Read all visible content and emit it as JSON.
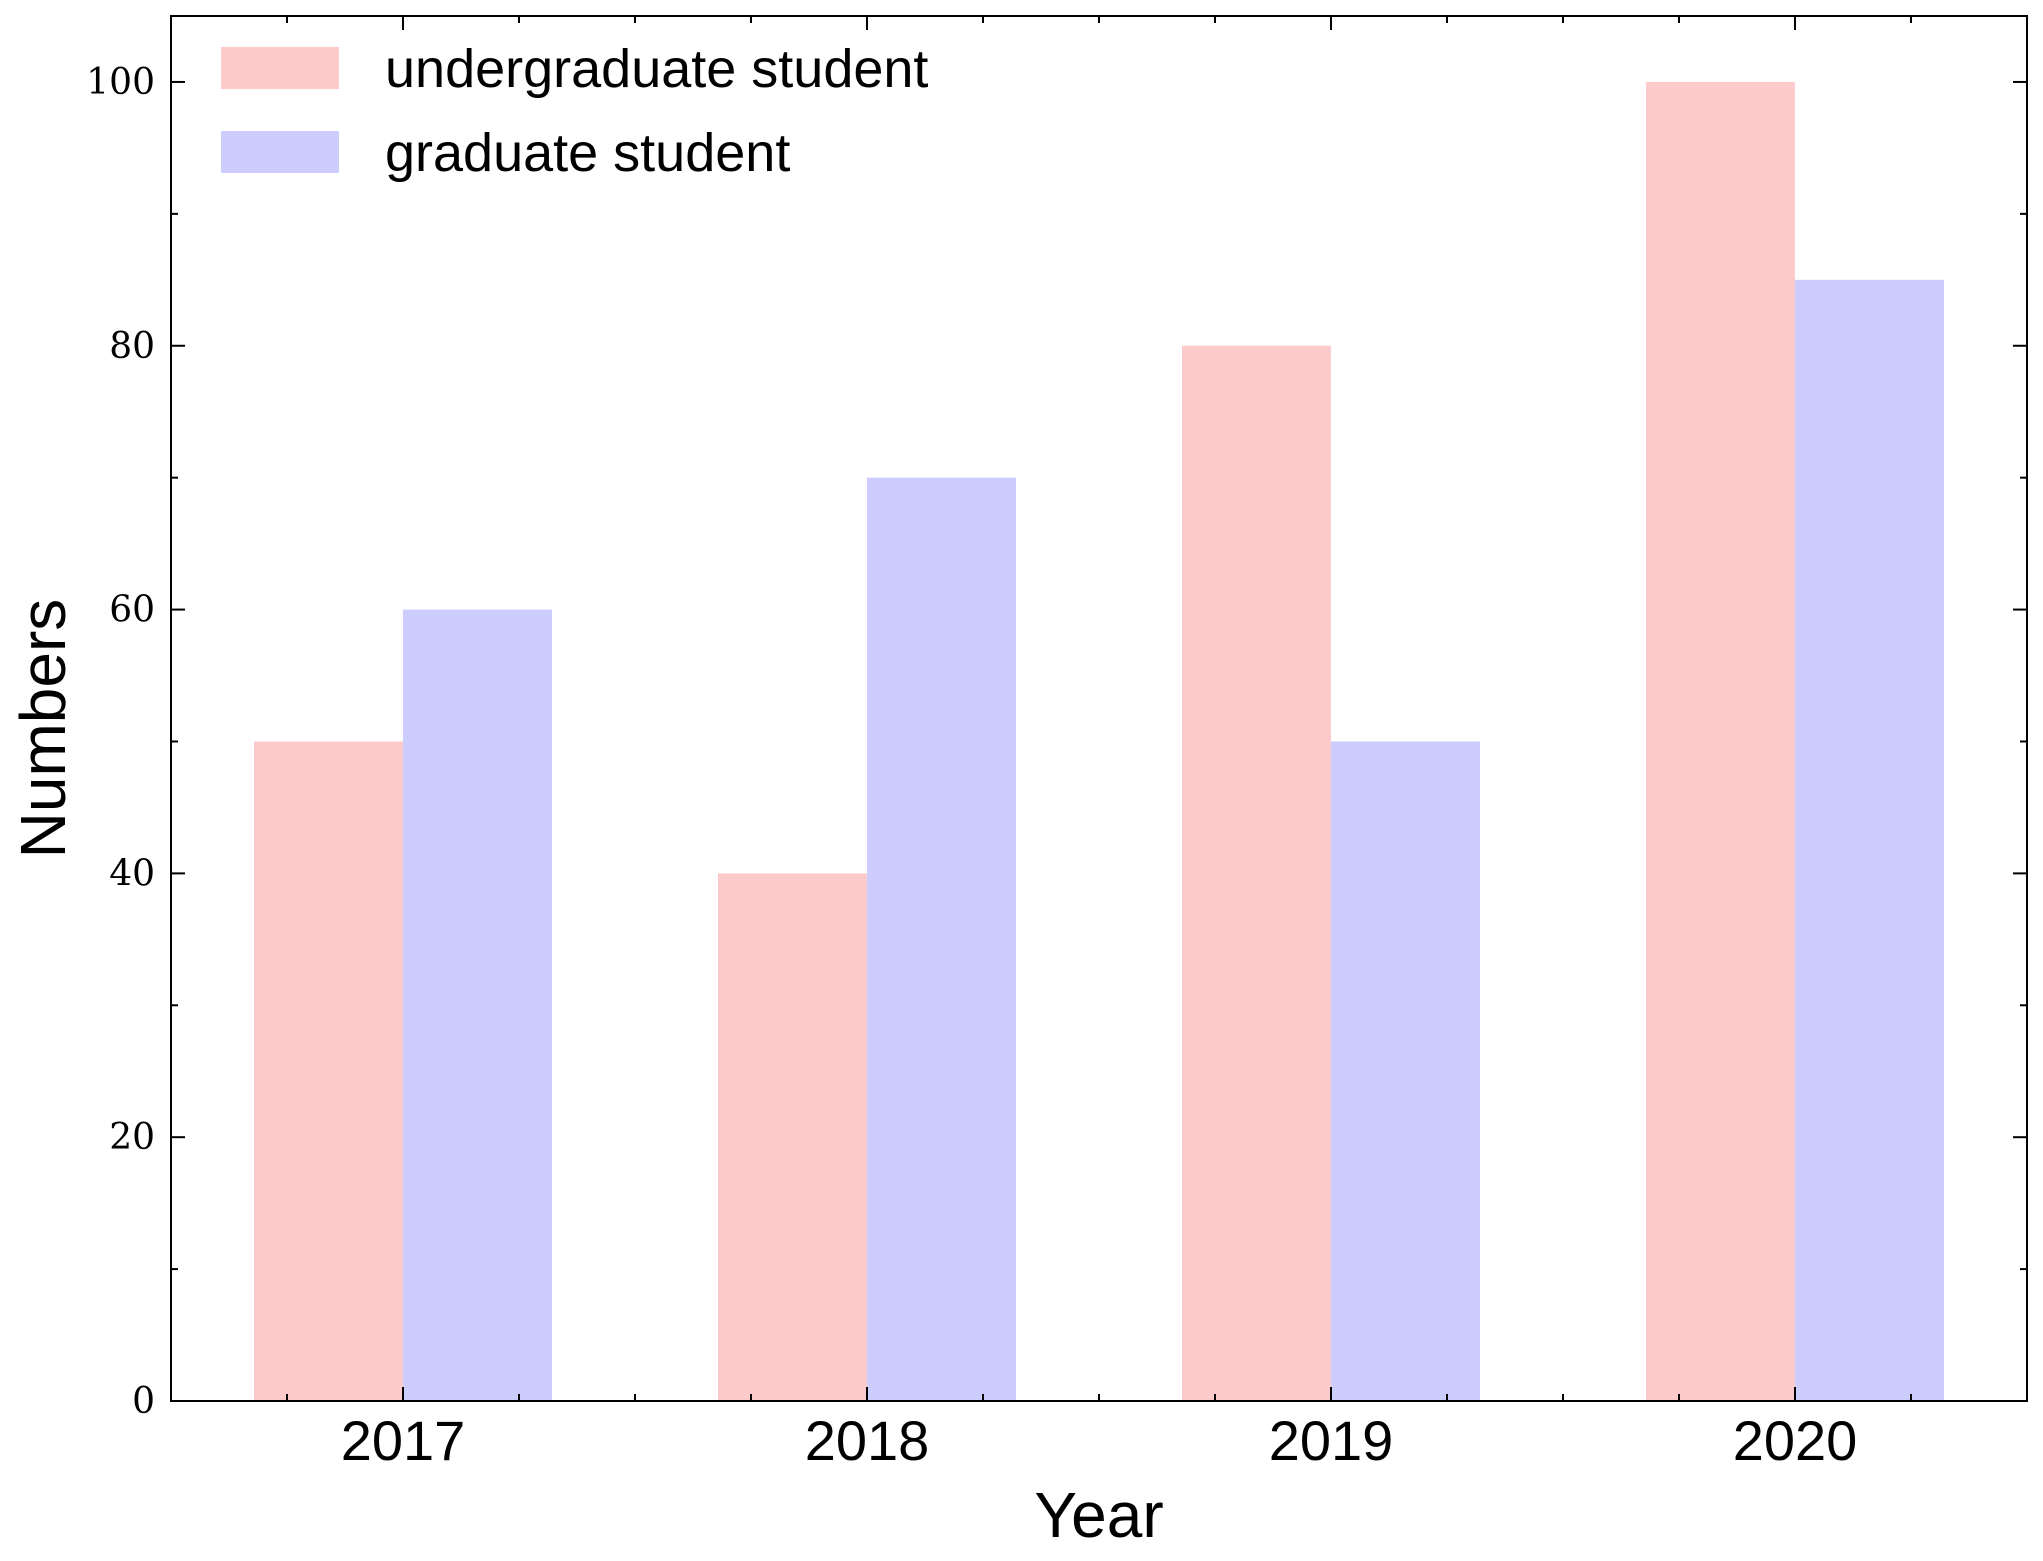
{
  "chart_data": {
    "type": "bar",
    "title": "",
    "xlabel": "Year",
    "ylabel": "Numbers",
    "categories": [
      "2017",
      "2018",
      "2019",
      "2020"
    ],
    "series": [
      {
        "name": "undergraduate student",
        "values": [
          50,
          40,
          80,
          100
        ],
        "color": "#fdcbcb"
      },
      {
        "name": "graduate student",
        "values": [
          60,
          70,
          50,
          85
        ],
        "color": "#cccdfd"
      }
    ],
    "ylim": [
      0,
      105
    ],
    "yticks": [
      0,
      20,
      40,
      60,
      80,
      100
    ],
    "ytick_labels": [
      "0",
      "20",
      "40",
      "60",
      "80",
      "100"
    ],
    "grid": false,
    "legend_position": "top-left"
  }
}
